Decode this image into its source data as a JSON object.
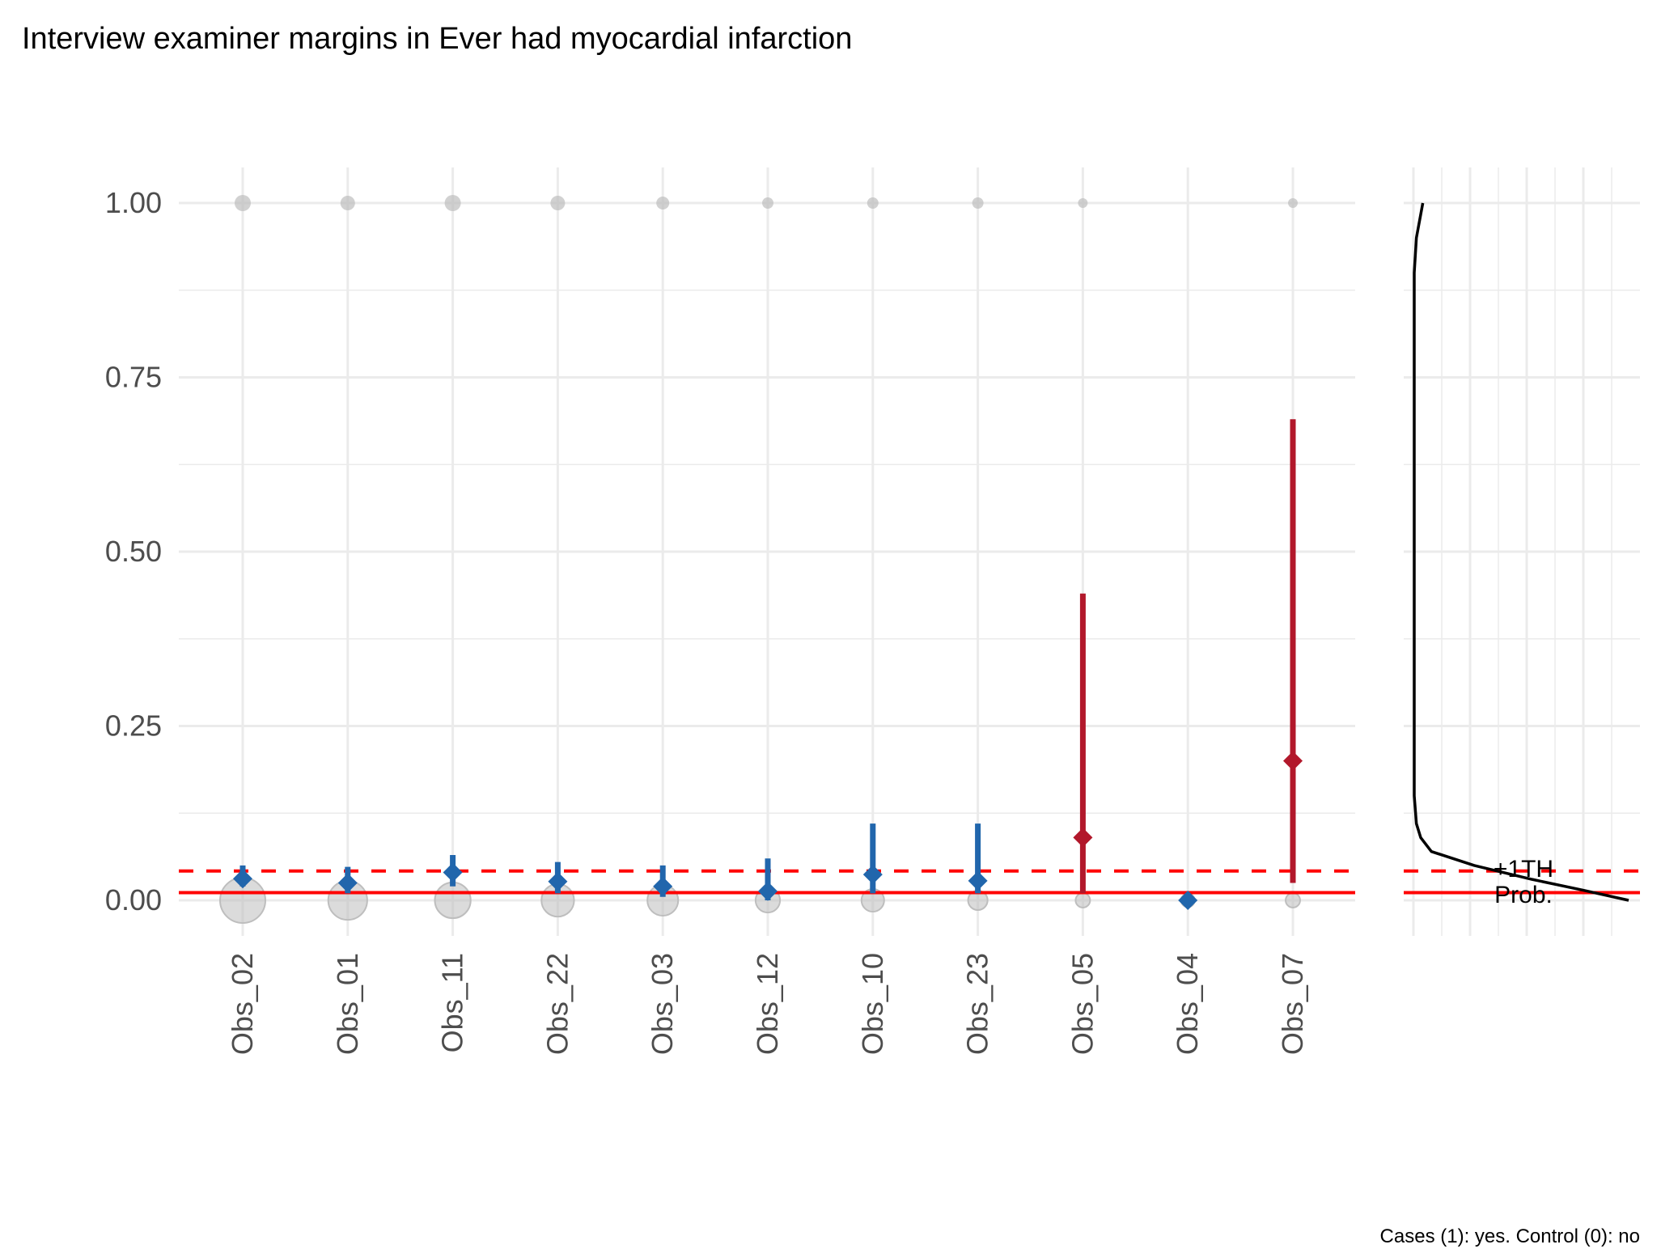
{
  "chart_data": {
    "type": "scatter",
    "title": "Interview examiner margins in Ever had myocardial infarction",
    "caption": "Cases (1): yes. Control (0): no",
    "xlabel": "",
    "ylabel": "",
    "ylim": [
      -0.05,
      1.05
    ],
    "yticks": [
      "0.00",
      "0.25",
      "0.50",
      "0.75",
      "1.00"
    ],
    "ytick_values": [
      0,
      0.25,
      0.5,
      0.75,
      1.0
    ],
    "grid": true,
    "categories": [
      "Obs_02",
      "Obs_01",
      "Obs_11",
      "Obs_22",
      "Obs_03",
      "Obs_12",
      "Obs_10",
      "Obs_23",
      "Obs_05",
      "Obs_04",
      "Obs_07"
    ],
    "estimate": [
      0.031,
      0.025,
      0.04,
      0.027,
      0.02,
      0.013,
      0.037,
      0.028,
      0.09,
      0.0,
      0.2
    ],
    "ci_low": [
      0.02,
      0.01,
      0.02,
      0.01,
      0.005,
      0.0,
      0.01,
      0.01,
      0.01,
      0.0,
      0.025
    ],
    "ci_high": [
      0.05,
      0.048,
      0.065,
      0.055,
      0.05,
      0.06,
      0.11,
      0.11,
      0.44,
      0.0,
      0.69
    ],
    "highlighted": [
      false,
      false,
      false,
      false,
      false,
      false,
      false,
      false,
      true,
      false,
      true
    ],
    "control_size_rel": [
      1.0,
      0.86,
      0.79,
      0.72,
      0.68,
      0.54,
      0.5,
      0.43,
      0.32,
      0.3,
      0.32
    ],
    "case_size_rel": [
      1.0,
      0.9,
      1.0,
      0.9,
      0.8,
      0.7,
      0.7,
      0.7,
      0.6,
      0.0,
      0.6
    ],
    "reference_lines": {
      "prob": {
        "label": "Prob.",
        "value": 0.011,
        "style": "solid"
      },
      "plus1th": {
        "label": "+1TH",
        "value": 0.042,
        "style": "dashed"
      }
    },
    "density_side_panel": {
      "description_points_y": [
        1.0,
        0.95,
        0.9,
        0.5,
        0.15,
        0.11,
        0.09,
        0.07,
        0.05,
        0.03,
        0.015,
        0.0
      ],
      "density_rel": [
        0.04,
        0.01,
        0.0,
        0.0,
        0.0,
        0.01,
        0.03,
        0.08,
        0.28,
        0.55,
        0.78,
        1.0
      ]
    },
    "colors": {
      "normal": "#2166AC",
      "highlight": "#B2182B",
      "reference": "#FF0000",
      "points_bg": "#BEBEBE",
      "grid": "#EBEBEB",
      "axis_text": "#4D4D4D"
    }
  }
}
